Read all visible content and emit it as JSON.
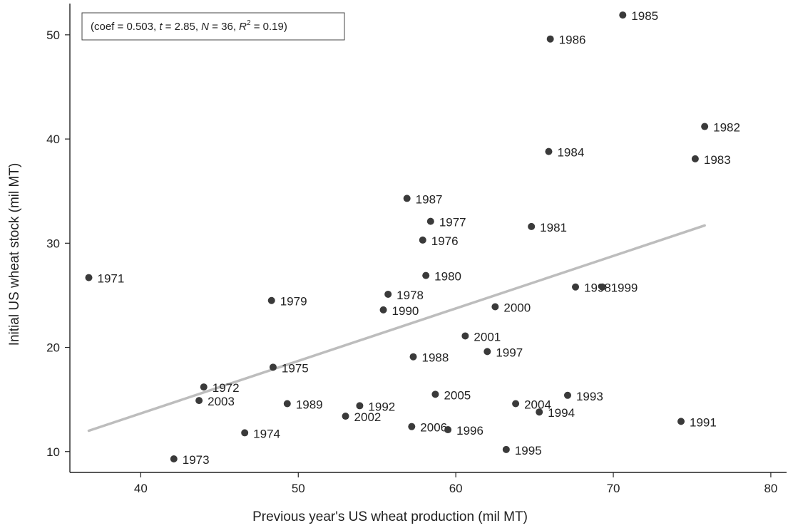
{
  "chart_data": {
    "type": "scatter",
    "title": "",
    "xlabel": "Previous year's US wheat production (mil MT)",
    "ylabel": "Initial US wheat stock (mil MT)",
    "xlim": [
      35.5,
      81
    ],
    "ylim": [
      8,
      53
    ],
    "xticks": [
      40,
      50,
      60,
      70,
      80
    ],
    "yticks": [
      10,
      20,
      30,
      40,
      50
    ],
    "grid": false,
    "colors": {
      "points": "#3a3a3a",
      "fit_line": "#bdbdbd",
      "axis": "#222222"
    },
    "annotation": {
      "coef": "0.503",
      "t": "2.85",
      "N": "36",
      "R2": "0.19"
    },
    "fit_line": {
      "x": [
        36.7,
        75.8
      ],
      "y": [
        12.0,
        31.7
      ]
    },
    "points": [
      {
        "label": "1985",
        "x": 70.6,
        "y": 51.9
      },
      {
        "label": "1986",
        "x": 66.0,
        "y": 49.6
      },
      {
        "label": "1982",
        "x": 75.8,
        "y": 41.2
      },
      {
        "label": "1984",
        "x": 65.9,
        "y": 38.8
      },
      {
        "label": "1983",
        "x": 75.2,
        "y": 38.1
      },
      {
        "label": "1987",
        "x": 56.9,
        "y": 34.3
      },
      {
        "label": "1977",
        "x": 58.4,
        "y": 32.1
      },
      {
        "label": "1981",
        "x": 64.8,
        "y": 31.6
      },
      {
        "label": "1976",
        "x": 57.9,
        "y": 30.3
      },
      {
        "label": "1980",
        "x": 58.1,
        "y": 26.9
      },
      {
        "label": "1971",
        "x": 36.7,
        "y": 26.7
      },
      {
        "label": "1998",
        "x": 67.6,
        "y": 25.8
      },
      {
        "label": "1999",
        "x": 69.3,
        "y": 25.8
      },
      {
        "label": "1978",
        "x": 55.7,
        "y": 25.1
      },
      {
        "label": "1979",
        "x": 48.3,
        "y": 24.5
      },
      {
        "label": "2000",
        "x": 62.5,
        "y": 23.9
      },
      {
        "label": "1990",
        "x": 55.4,
        "y": 23.6
      },
      {
        "label": "2001",
        "x": 60.6,
        "y": 21.1
      },
      {
        "label": "1997",
        "x": 62.0,
        "y": 19.6
      },
      {
        "label": "1988",
        "x": 57.3,
        "y": 19.1
      },
      {
        "label": "1975",
        "x": 48.4,
        "y": 18.1
      },
      {
        "label": "1972",
        "x": 44.0,
        "y": 16.2
      },
      {
        "label": "2005",
        "x": 58.7,
        "y": 15.5
      },
      {
        "label": "1993",
        "x": 67.1,
        "y": 15.4
      },
      {
        "label": "2003",
        "x": 43.7,
        "y": 14.9
      },
      {
        "label": "2004",
        "x": 63.8,
        "y": 14.6
      },
      {
        "label": "1989",
        "x": 49.3,
        "y": 14.6
      },
      {
        "label": "1992",
        "x": 53.9,
        "y": 14.4
      },
      {
        "label": "1994",
        "x": 65.3,
        "y": 13.8
      },
      {
        "label": "2002",
        "x": 53.0,
        "y": 13.4
      },
      {
        "label": "1991",
        "x": 74.3,
        "y": 12.9
      },
      {
        "label": "2006",
        "x": 57.2,
        "y": 12.4
      },
      {
        "label": "1996",
        "x": 59.5,
        "y": 12.1
      },
      {
        "label": "1974",
        "x": 46.6,
        "y": 11.8
      },
      {
        "label": "1995",
        "x": 63.2,
        "y": 10.2
      },
      {
        "label": "1973",
        "x": 42.1,
        "y": 9.3
      }
    ]
  }
}
